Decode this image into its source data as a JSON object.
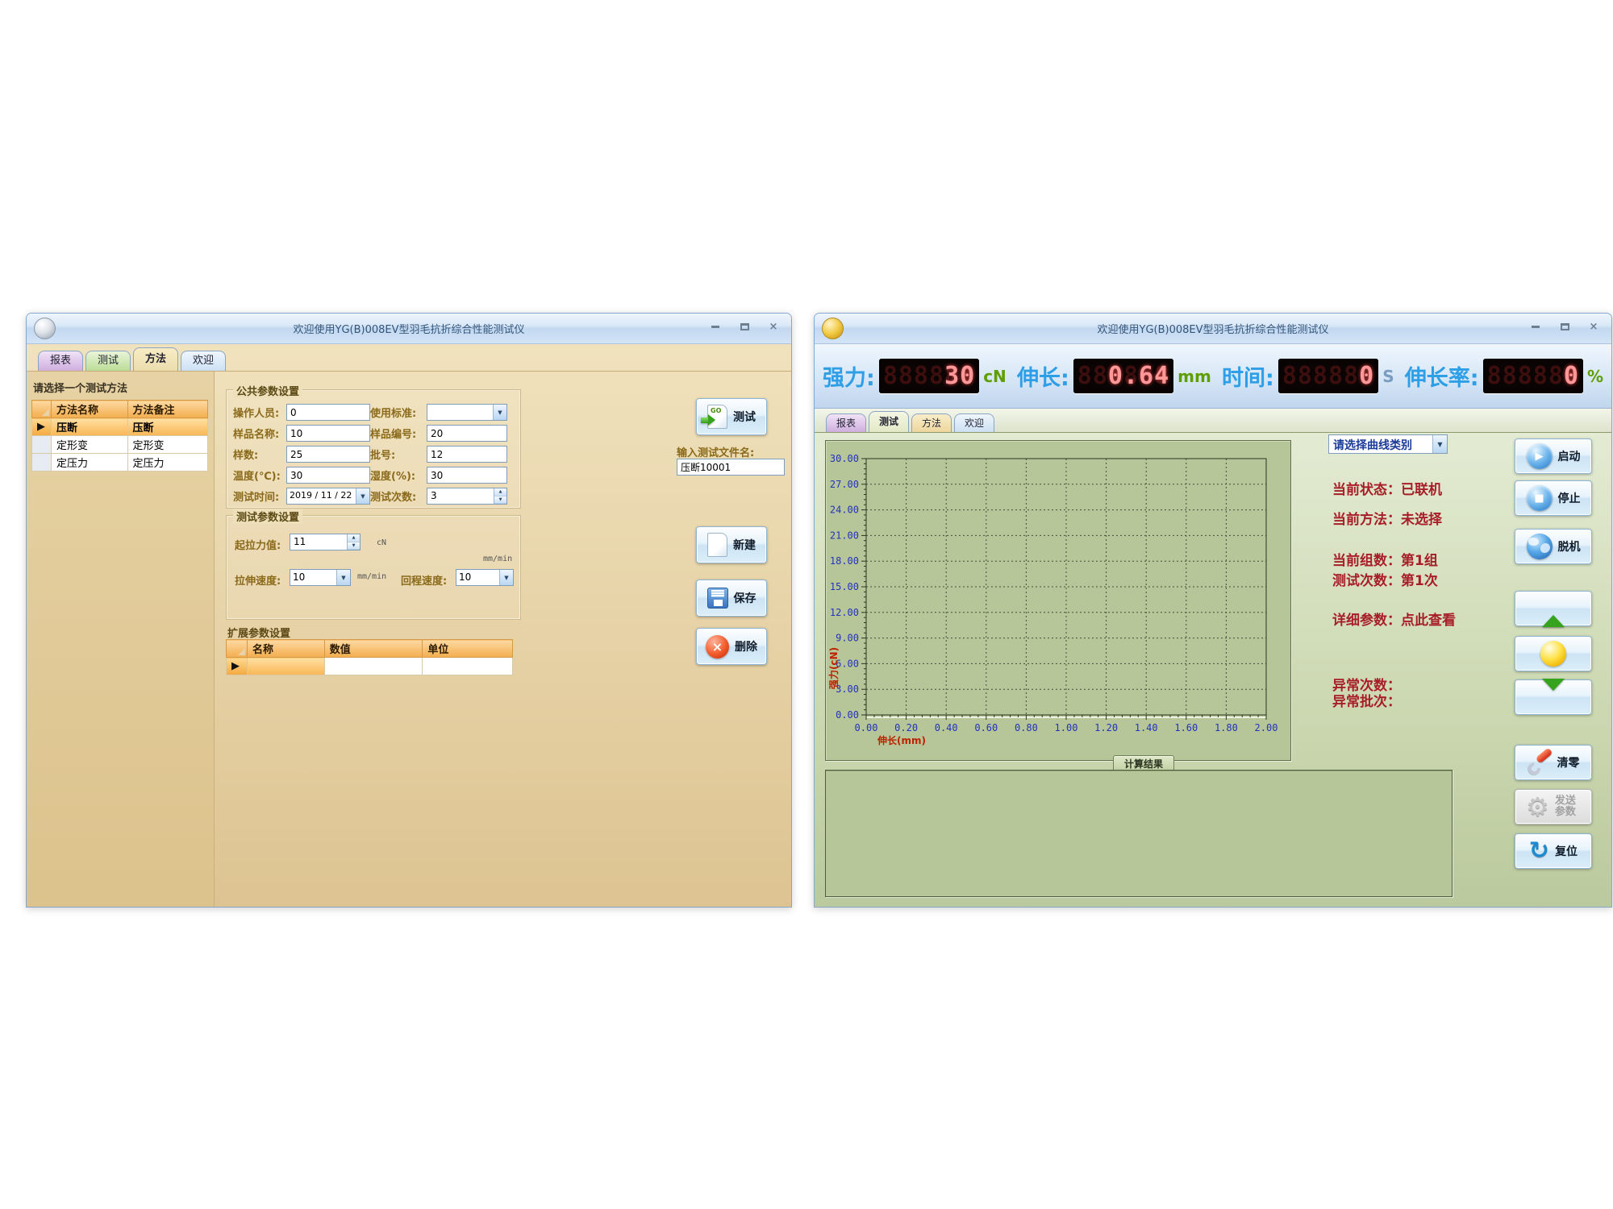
{
  "icons": {
    "minimize": "–",
    "maximize": "□",
    "close": "×",
    "dropdown": "▼",
    "spin_up": "▲",
    "spin_down": "▼",
    "row_selector": "▶",
    "play": "▶",
    "stop": "■",
    "reset": "↻",
    "gear": "⚙",
    "delete_x": "×",
    "go": "GO"
  },
  "colors": {
    "led_label_blue": "#2e9fe6",
    "led_lit": "#ff9898",
    "unit_green": "#5f9e00",
    "status_red": "#a81e28",
    "axis_tick_blue": "#2233bb",
    "axis_title_red": "#bb2200"
  },
  "left_window": {
    "title": "欢迎使用YG(B)008EV型羽毛抗折综合性能测试仪",
    "tabs": [
      {
        "label": "报表"
      },
      {
        "label": "测试"
      },
      {
        "label": "方法"
      },
      {
        "label": "欢迎"
      }
    ],
    "active_tab": "方法",
    "select_method_label": "请选择一个测试方法",
    "method_table": {
      "headers": [
        "方法名称",
        "方法备注"
      ],
      "rows": [
        {
          "name": "压断",
          "note": "压断",
          "selected": true
        },
        {
          "name": "定形变",
          "note": "定形变",
          "selected": false
        },
        {
          "name": "定压力",
          "note": "定压力",
          "selected": false
        }
      ]
    },
    "common_group": {
      "title": "公共参数设置",
      "operator": {
        "label": "操作人员:",
        "value": "0"
      },
      "standard": {
        "label": "使用标准:",
        "value": ""
      },
      "sample_name": {
        "label": "样品名称:",
        "value": "10"
      },
      "sample_no": {
        "label": "样品编号:",
        "value": "20"
      },
      "sample_count": {
        "label": "样数:",
        "value": "25"
      },
      "batch_no": {
        "label": "批号:",
        "value": "12"
      },
      "temperature": {
        "label": "温度(℃):",
        "value": "30"
      },
      "humidity": {
        "label": "湿度(%):",
        "value": "30"
      },
      "test_date": {
        "label": "测试时间:",
        "value": "2019 / 11 / 22"
      },
      "test_times": {
        "label": "测试次数:",
        "value": "3"
      }
    },
    "test_group": {
      "title": "测试参数设置",
      "start_force": {
        "label": "起拉力值:",
        "value": "11",
        "unit": "cN"
      },
      "pull_speed": {
        "label": "拉伸速度:",
        "value": "10",
        "unit": "mm/min"
      },
      "return_speed": {
        "label": "回程速度:",
        "value": "10",
        "unit": "mm/min"
      }
    },
    "ext_group": {
      "title": "扩展参数设置",
      "headers": [
        "名称",
        "数值",
        "单位"
      ]
    },
    "buttons": {
      "test": "测试",
      "new": "新建",
      "save": "保存",
      "delete": "删除"
    },
    "filename": {
      "label": "输入测试文件名:",
      "value": "压断10001"
    }
  },
  "right_window": {
    "title": "欢迎使用YG(B)008EV型羽毛抗折综合性能测试仪",
    "tabs": [
      {
        "label": "报表"
      },
      {
        "label": "测试"
      },
      {
        "label": "方法"
      },
      {
        "label": "欢迎"
      }
    ],
    "active_tab": "测试",
    "led_displays": [
      {
        "label": "强力:",
        "ghost": "888888",
        "value": "30",
        "unit": "cN"
      },
      {
        "label": "伸长:",
        "ghost": "888888",
        "value": "0.64",
        "unit": "mm"
      },
      {
        "label": "时间:",
        "ghost": "888888",
        "value": "0",
        "unit": "S"
      },
      {
        "label": "伸长率:",
        "ghost": "888888",
        "value": "0",
        "unit": "%"
      }
    ],
    "curve_select_label": "请选择曲线类别",
    "status_lines": [
      {
        "text": "当前状态：已联机"
      },
      {
        "text": "当前方法：未选择"
      },
      {
        "text": "当前组数：第1组"
      },
      {
        "text": "测试次数：第1次"
      },
      {
        "text": "详细参数：点此查看"
      },
      {
        "text": "异常次数："
      },
      {
        "text": "异常批次："
      }
    ],
    "buttons": {
      "start": "启动",
      "stop": "停止",
      "offline": "脱机",
      "clear": "清零",
      "send": "发送参数",
      "reset": "复位"
    },
    "results_label": "计算结果"
  },
  "chart_data": {
    "type": "line",
    "title": "",
    "xlabel": "伸长(mm)",
    "ylabel": "强力(cN)",
    "xlim": [
      0.0,
      2.0
    ],
    "ylim": [
      0,
      30
    ],
    "x_ticks": [
      "0.00",
      "0.20",
      "0.40",
      "0.60",
      "0.80",
      "1.00",
      "1.20",
      "1.40",
      "1.60",
      "1.80",
      "2.00"
    ],
    "y_ticks": [
      "0.00",
      "3.00",
      "6.00",
      "9.00",
      "12.00",
      "15.00",
      "18.00",
      "21.00",
      "24.00",
      "27.00",
      "30.00"
    ],
    "grid": "dashed",
    "legend": false,
    "series": []
  }
}
